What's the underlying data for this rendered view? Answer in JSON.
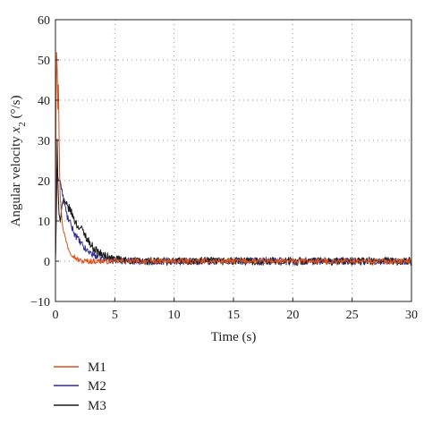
{
  "chart_data": {
    "type": "line",
    "title": "",
    "xlabel": "Time (s)",
    "ylabel": "Angular velocity x2 (°/s)",
    "ylabel_parts": {
      "prefix": "Angular velocity ",
      "var": "x",
      "sub": "2",
      "suffix": " (°/s)"
    },
    "xlim": [
      0,
      30
    ],
    "ylim": [
      -10,
      60
    ],
    "xticks": [
      0,
      5,
      10,
      15,
      20,
      25,
      30
    ],
    "yticks": [
      -10,
      0,
      10,
      20,
      30,
      40,
      50,
      60
    ],
    "grid": true,
    "legend": "below-left",
    "series": [
      {
        "name": "M1",
        "color": "#d9541e",
        "x": [
          0,
          0.05,
          0.1,
          0.15,
          0.2,
          0.25,
          0.3,
          0.35,
          0.4,
          0.5,
          0.6,
          0.8,
          1.0,
          1.2,
          1.5,
          1.8,
          2.2,
          2.6,
          3.0,
          4.0,
          5.0,
          7.0,
          10.0,
          15.0,
          20.0,
          25.0,
          30.0
        ],
        "values": [
          0,
          40,
          52,
          48,
          38,
          44,
          32,
          22,
          16,
          12,
          9,
          6,
          4,
          2.5,
          1.5,
          0.5,
          0,
          0,
          0,
          0,
          0,
          0,
          0,
          0,
          0,
          0,
          0
        ],
        "noise": 0.7
      },
      {
        "name": "M2",
        "color": "#2e2a8f",
        "x": [
          0,
          0.05,
          0.1,
          0.15,
          0.2,
          0.3,
          0.4,
          0.5,
          0.7,
          1.0,
          1.3,
          1.6,
          2.0,
          2.5,
          3.0,
          3.5,
          4.0,
          5.0,
          7.0,
          10.0,
          15.0,
          20.0,
          25.0,
          30.0
        ],
        "values": [
          0,
          10,
          22,
          24,
          21,
          20,
          20,
          18,
          15,
          11,
          9,
          7,
          5,
          3,
          2,
          1.2,
          0.8,
          0.3,
          0,
          0,
          0,
          0,
          0,
          0
        ],
        "noise": 0.9
      },
      {
        "name": "M3",
        "color": "#1a1a1a",
        "x": [
          0,
          0.05,
          0.1,
          0.15,
          0.2,
          0.3,
          0.4,
          0.6,
          0.9,
          1.2,
          1.5,
          1.8,
          2.2,
          2.6,
          3.0,
          3.5,
          4.0,
          5.0,
          7.0,
          10.0,
          15.0,
          20.0,
          25.0,
          30.0
        ],
        "values": [
          0,
          7,
          16,
          30,
          20,
          12,
          10,
          15,
          14,
          13,
          11,
          9,
          8,
          6,
          4,
          2.5,
          1.5,
          0.5,
          0,
          0,
          0,
          0,
          0,
          0
        ],
        "noise": 1.0
      }
    ]
  }
}
